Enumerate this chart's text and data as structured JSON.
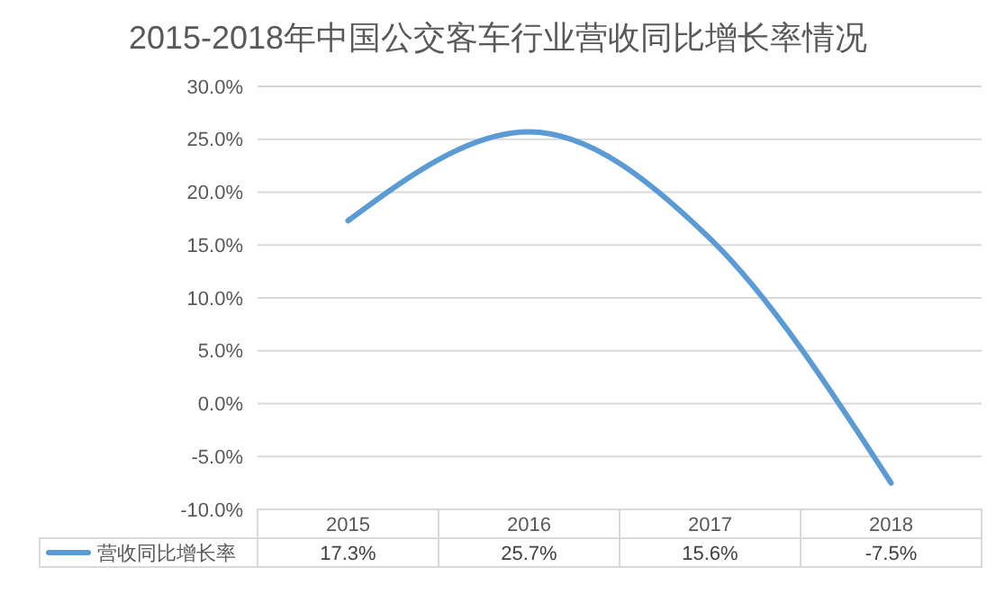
{
  "chart_data": {
    "type": "line",
    "title": "2015-2018年中国公交客车行业营收同比增长率情况",
    "categories": [
      "2015",
      "2016",
      "2017",
      "2018"
    ],
    "series": [
      {
        "name": "营收同比增长率",
        "color": "#5b9bd5",
        "values": [
          17.3,
          25.7,
          15.6,
          -7.5
        ],
        "value_labels": [
          "17.3%",
          "25.7%",
          "15.6%",
          "-7.5%"
        ]
      }
    ],
    "ylim": [
      -10,
      30
    ],
    "yticks": [
      {
        "value": -10,
        "label": "-10.0%"
      },
      {
        "value": -5,
        "label": "-5.0%"
      },
      {
        "value": 0,
        "label": "0.0%"
      },
      {
        "value": 5,
        "label": "5.0%"
      },
      {
        "value": 10,
        "label": "10.0%"
      },
      {
        "value": 15,
        "label": "15.0%"
      },
      {
        "value": 20,
        "label": "20.0%"
      },
      {
        "value": 25,
        "label": "25.0%"
      },
      {
        "value": 30,
        "label": "30.0%"
      }
    ],
    "grid": "y",
    "legend": "bottom",
    "marker": "none",
    "line_style": "solid"
  }
}
